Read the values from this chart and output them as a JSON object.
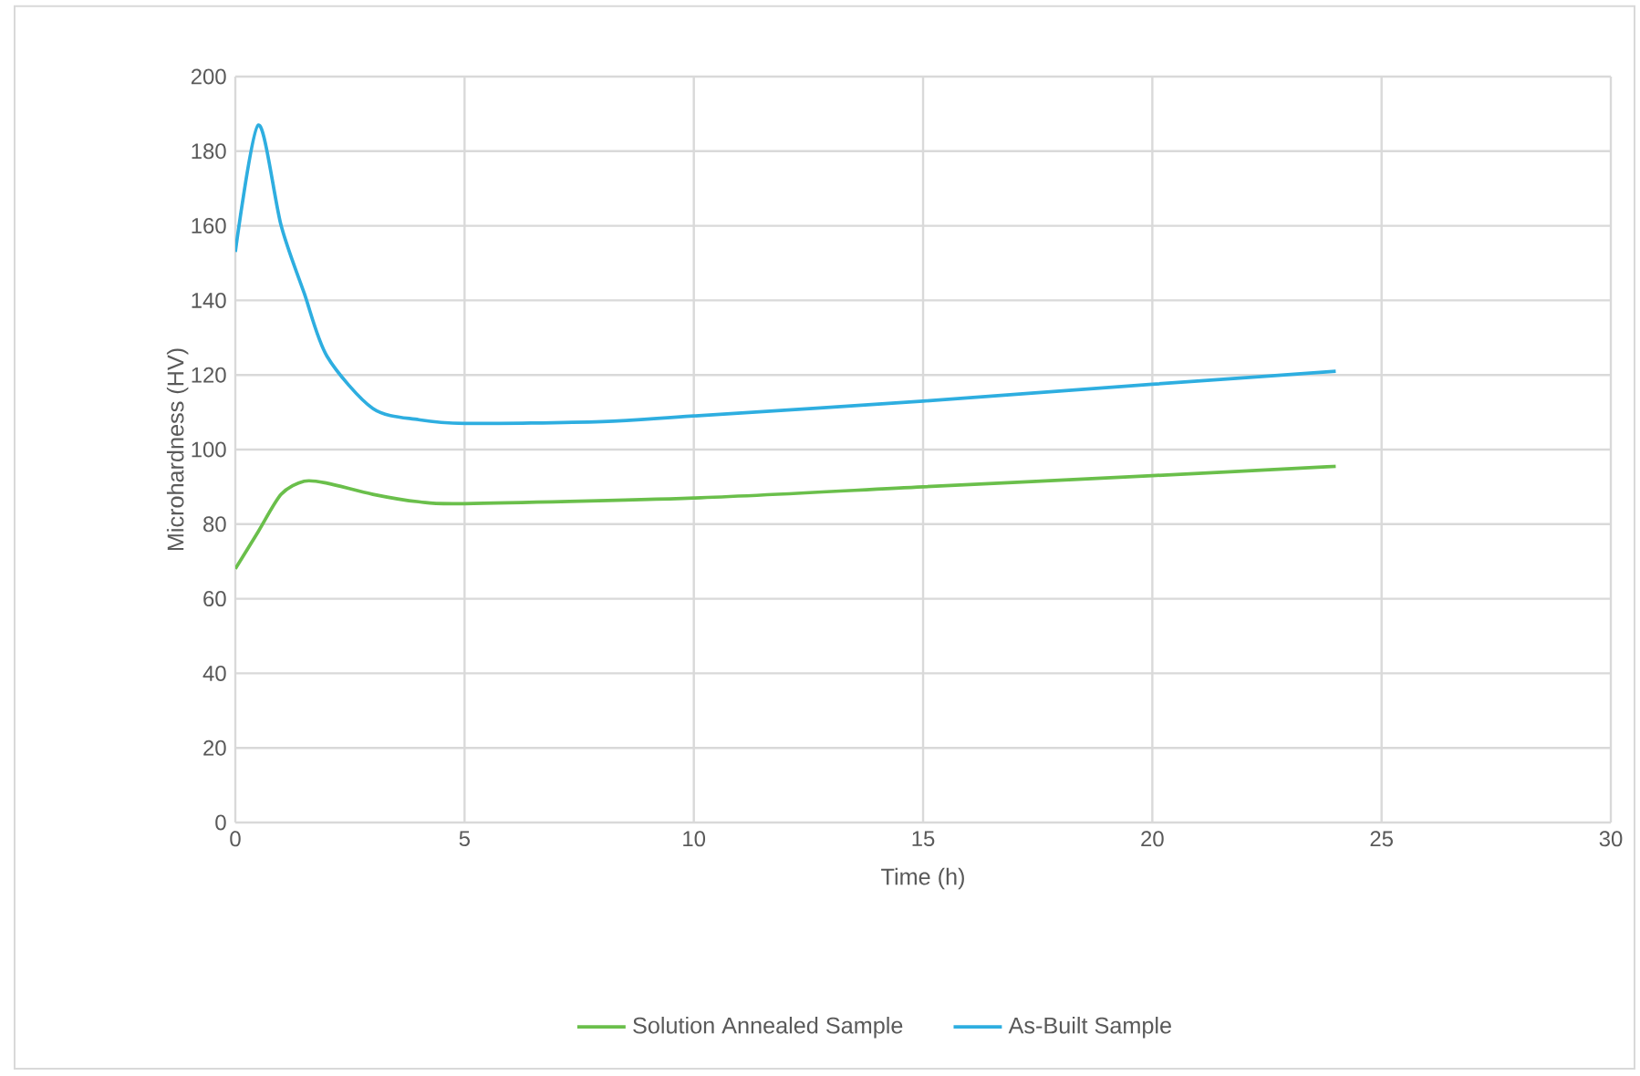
{
  "chart_data": {
    "type": "line",
    "xlabel": "Time (h)",
    "ylabel": "Microhardness (HV)",
    "xlim": [
      0,
      30
    ],
    "xticks": [
      0,
      5,
      10,
      15,
      20,
      25,
      30
    ],
    "ylim": [
      0,
      200
    ],
    "yticks": [
      0,
      20,
      40,
      60,
      80,
      100,
      120,
      140,
      160,
      180,
      200
    ],
    "grid": true,
    "legend": "bottom",
    "marker": "none",
    "line_style": "solid",
    "series": [
      {
        "name": "Solution Annealed Sample",
        "color": "#6abf4b",
        "x": [
          0,
          0.5,
          1,
          1.5,
          2,
          3,
          4,
          5,
          10,
          15,
          20,
          24
        ],
        "values": [
          68,
          78,
          88,
          91.5,
          91,
          88,
          86,
          85.5,
          87,
          90,
          93,
          95.5
        ]
      },
      {
        "name": "As-Built Sample",
        "color": "#2eaee0",
        "x": [
          0,
          0.5,
          1,
          1.5,
          2,
          3,
          4,
          5,
          8,
          10,
          15,
          20,
          24
        ],
        "values": [
          153,
          187,
          160,
          142,
          125,
          111,
          108,
          107,
          107.5,
          109,
          113,
          117.5,
          121
        ]
      }
    ]
  }
}
